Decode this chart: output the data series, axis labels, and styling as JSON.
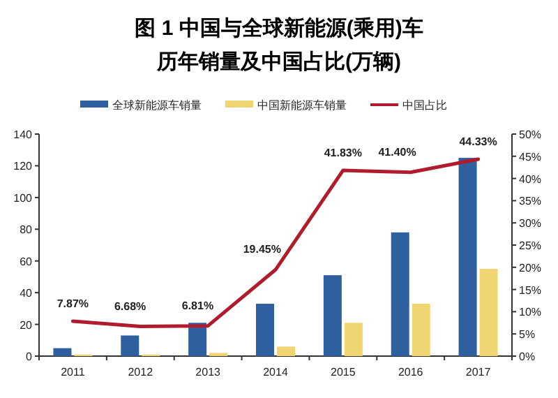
{
  "chart_data": {
    "type": "bar",
    "title": "图 1  中国与全球新能源(乘用)车",
    "subtitle": "历年销量及中国占比(万辆)",
    "categories": [
      "2011",
      "2012",
      "2013",
      "2014",
      "2015",
      "2016",
      "2017"
    ],
    "series": [
      {
        "name": "全球新能源车销量",
        "color": "#2e5f9e",
        "values": [
          5,
          13,
          21,
          33,
          51,
          78,
          125
        ]
      },
      {
        "name": "中国新能源车销量",
        "color": "#f0d572",
        "values": [
          1,
          1,
          2,
          6,
          21,
          33,
          55
        ]
      },
      {
        "name": "中国占比",
        "type": "line",
        "axis": "y2",
        "color": "#b01c2e",
        "values": [
          7.87,
          6.68,
          6.81,
          19.45,
          41.83,
          41.4,
          44.33
        ],
        "value_labels": [
          "7.87%",
          "6.68%",
          "6.81%",
          "19.45%",
          "41.83%",
          "41.40%",
          "44.33%"
        ]
      }
    ],
    "ylim": [
      0,
      140
    ],
    "yticks": [
      0,
      20,
      40,
      60,
      80,
      100,
      120,
      140
    ],
    "y2lim": [
      0,
      50
    ],
    "y2ticks": [
      {
        "value": 0,
        "label": "0%"
      },
      {
        "value": 5,
        "label": "5%"
      },
      {
        "value": 10,
        "label": "10%"
      },
      {
        "value": 15,
        "label": "15%"
      },
      {
        "value": 20,
        "label": "20%"
      },
      {
        "value": 25,
        "label": "25%"
      },
      {
        "value": 30,
        "label": "30%"
      },
      {
        "value": 35,
        "label": "35%"
      },
      {
        "value": 40,
        "label": "40%"
      },
      {
        "value": 45,
        "label": "45%"
      },
      {
        "value": 50,
        "label": "50%"
      }
    ],
    "legend": "top",
    "grid": false
  }
}
